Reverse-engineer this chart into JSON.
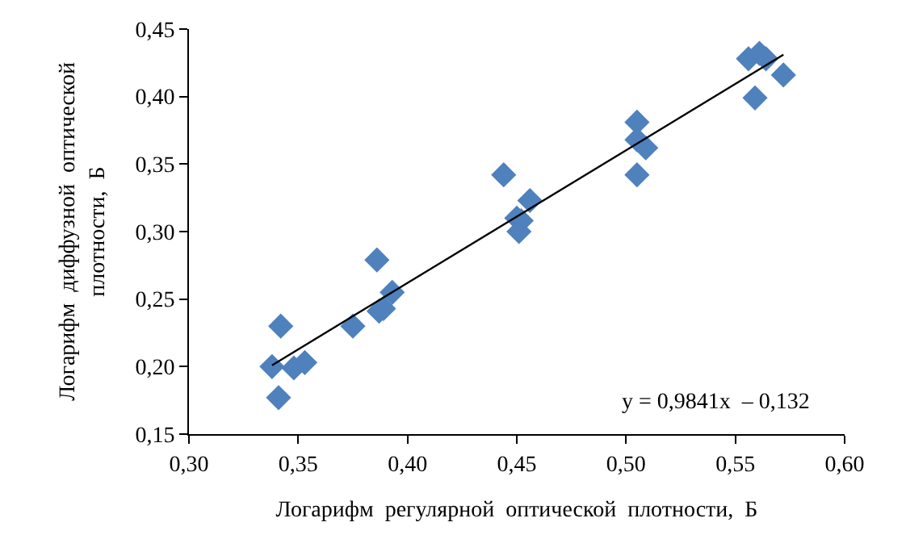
{
  "chart_data": {
    "type": "scatter",
    "xlabel": "Логарифм  регулярной  оптической  плотности,  Б",
    "ylabel": "Логарифм  диффузной  оптической\nплотности,  Б",
    "xlim": [
      0.3,
      0.6
    ],
    "xticks": [
      {
        "value": 0.3,
        "label": "0,30"
      },
      {
        "value": 0.35,
        "label": "0,35"
      },
      {
        "value": 0.4,
        "label": "0,40"
      },
      {
        "value": 0.45,
        "label": "0,45"
      },
      {
        "value": 0.5,
        "label": "0,50"
      },
      {
        "value": 0.55,
        "label": "0,55"
      },
      {
        "value": 0.6,
        "label": "0,60"
      }
    ],
    "ylim": [
      0.15,
      0.45
    ],
    "yticks": [
      {
        "value": 0.15,
        "label": "0,15"
      },
      {
        "value": 0.2,
        "label": "0,20"
      },
      {
        "value": 0.25,
        "label": "0,25"
      },
      {
        "value": 0.3,
        "label": "0,30"
      },
      {
        "value": 0.35,
        "label": "0,35"
      },
      {
        "value": 0.4,
        "label": "0,40"
      },
      {
        "value": 0.45,
        "label": "0,45"
      }
    ],
    "marker": "diamond",
    "series": [
      {
        "color": "#4f81bd",
        "x": [
          0.338,
          0.342,
          0.341,
          0.348,
          0.353,
          0.375,
          0.386,
          0.387,
          0.389,
          0.393,
          0.444,
          0.45,
          0.452,
          0.451,
          0.456,
          0.505,
          0.505,
          0.509,
          0.505,
          0.556,
          0.561,
          0.564,
          0.559,
          0.572
        ],
        "values": [
          0.2,
          0.23,
          0.177,
          0.199,
          0.203,
          0.23,
          0.279,
          0.241,
          0.243,
          0.255,
          0.342,
          0.31,
          0.308,
          0.3,
          0.323,
          0.381,
          0.368,
          0.362,
          0.342,
          0.428,
          0.432,
          0.428,
          0.399,
          0.416
        ]
      },
      {
        "type": "line",
        "color": "#000000",
        "marker": "none",
        "x": [
          0.338,
          0.572
        ],
        "values": [
          0.201,
          0.431
        ]
      }
    ],
    "annotations": [
      "y = 0,9841x  – 0,132"
    ]
  }
}
